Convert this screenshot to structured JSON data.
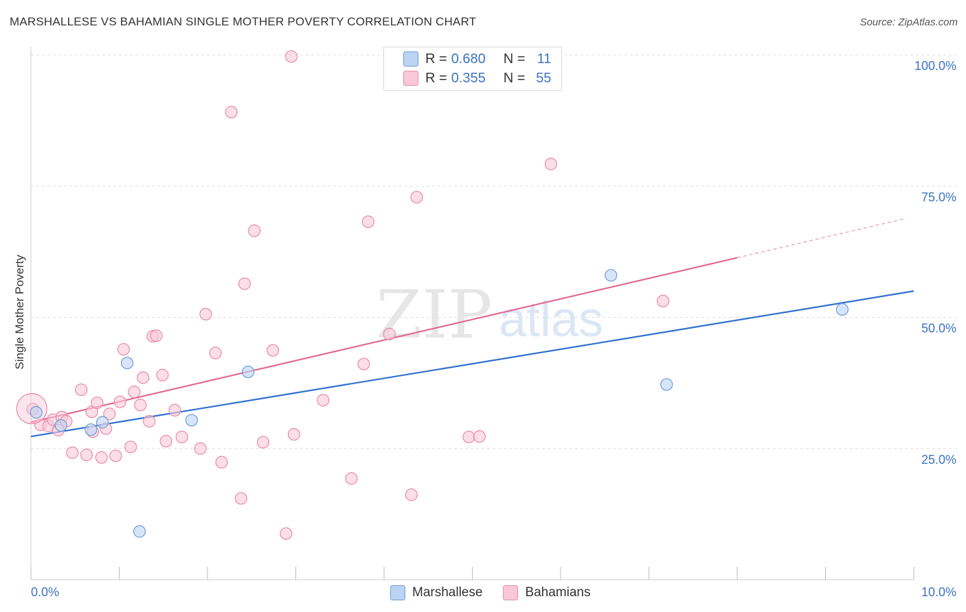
{
  "title": "MARSHALLESE VS BAHAMIAN SINGLE MOTHER POVERTY CORRELATION CHART",
  "source": "Source: ZipAtlas.com",
  "watermark": {
    "zip": "ZIP",
    "atlas": "atlas"
  },
  "legend_top": [
    {
      "r_label": "R =",
      "r_value": "0.680",
      "n_label": "N =",
      "n_value": "11"
    },
    {
      "r_label": "R =",
      "r_value": "0.355",
      "n_label": "N =",
      "n_value": "55"
    }
  ],
  "colors": {
    "marshallese_fill": "#bcd3f3",
    "marshallese_stroke": "#6f9ad6",
    "marshallese_line": "#2f6fcf",
    "bahamians_fill": "#f8c8d8",
    "bahamians_stroke": "#e88aa8",
    "bahamians_line": "#e06a93",
    "grid": "#dddddd",
    "tick_label": "#3b73c4"
  },
  "chart_data": {
    "type": "scatter",
    "title": "MARSHALLESE VS BAHAMIAN SINGLE MOTHER POVERTY CORRELATION CHART",
    "xlabel": "",
    "ylabel": "Single Mother Poverty",
    "xlim": [
      0,
      10
    ],
    "ylim": [
      0,
      100
    ],
    "x_tick_labels": [
      "0.0%",
      "10.0%"
    ],
    "y_ticks": [
      {
        "value": 25,
        "label": "25.0%"
      },
      {
        "value": 50,
        "label": "50.0%"
      },
      {
        "value": 75,
        "label": "75.0%"
      },
      {
        "value": 100,
        "label": "100.0%"
      }
    ],
    "grid": true,
    "legend_position": "bottom-center",
    "series": [
      {
        "name": "Marshallese",
        "r": 0.68,
        "n": 11,
        "points": [
          [
            0.06,
            31.9
          ],
          [
            0.34,
            29.4
          ],
          [
            0.68,
            28.6
          ],
          [
            0.81,
            30.0
          ],
          [
            1.09,
            41.3
          ],
          [
            1.23,
            9.2
          ],
          [
            1.82,
            30.4
          ],
          [
            2.46,
            39.6
          ],
          [
            6.57,
            58.0
          ],
          [
            7.2,
            37.2
          ],
          [
            9.19,
            51.5
          ]
        ],
        "trend": {
          "x0": 0,
          "y0": 27.3,
          "x1": 10,
          "y1": 55.0,
          "solid_to": 10
        }
      },
      {
        "name": "Bahamians",
        "r": 0.355,
        "n": 55,
        "points": [
          [
            0.02,
            32.5
          ],
          [
            0.11,
            29.5
          ],
          [
            0.2,
            29.3
          ],
          [
            0.25,
            30.5
          ],
          [
            0.31,
            28.5
          ],
          [
            0.35,
            31.0
          ],
          [
            0.4,
            30.2
          ],
          [
            0.47,
            24.2
          ],
          [
            0.57,
            36.2
          ],
          [
            0.63,
            23.8
          ],
          [
            0.69,
            32.0
          ],
          [
            0.7,
            28.2
          ],
          [
            0.75,
            33.7
          ],
          [
            0.8,
            23.3
          ],
          [
            0.85,
            28.8
          ],
          [
            0.89,
            31.6
          ],
          [
            0.96,
            23.6
          ],
          [
            1.01,
            33.9
          ],
          [
            1.05,
            43.9
          ],
          [
            1.13,
            25.3
          ],
          [
            1.17,
            35.8
          ],
          [
            1.24,
            33.3
          ],
          [
            1.27,
            38.5
          ],
          [
            1.34,
            30.2
          ],
          [
            1.38,
            46.4
          ],
          [
            1.42,
            46.5
          ],
          [
            1.49,
            39.0
          ],
          [
            1.53,
            26.4
          ],
          [
            1.63,
            32.3
          ],
          [
            1.71,
            27.2
          ],
          [
            1.92,
            25.0
          ],
          [
            1.98,
            50.6
          ],
          [
            2.09,
            43.2
          ],
          [
            2.16,
            22.4
          ],
          [
            2.27,
            89.1
          ],
          [
            2.38,
            15.5
          ],
          [
            2.42,
            56.4
          ],
          [
            2.53,
            66.5
          ],
          [
            2.63,
            26.2
          ],
          [
            2.74,
            43.7
          ],
          [
            2.89,
            8.8
          ],
          [
            2.95,
            99.7
          ],
          [
            2.98,
            27.7
          ],
          [
            3.31,
            34.2
          ],
          [
            3.63,
            19.3
          ],
          [
            3.77,
            41.1
          ],
          [
            3.82,
            68.2
          ],
          [
            4.06,
            46.8
          ],
          [
            4.31,
            16.2
          ],
          [
            4.37,
            72.9
          ],
          [
            4.96,
            27.2
          ],
          [
            5.08,
            27.3
          ],
          [
            5.89,
            79.2
          ],
          [
            7.16,
            53.1
          ],
          [
            0.01,
            32.6
          ]
        ],
        "trend": {
          "x0": 0,
          "y0": 30.0,
          "x1": 9.9,
          "y1": 68.8,
          "solid_to": 8.0
        }
      }
    ]
  }
}
